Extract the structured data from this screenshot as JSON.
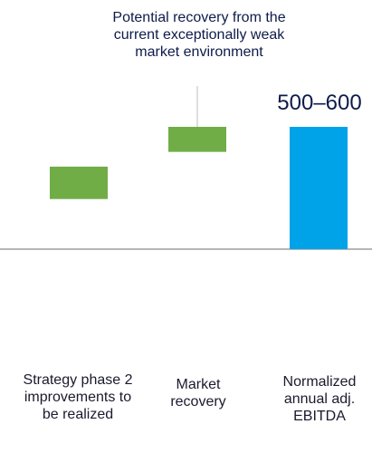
{
  "chart_data": {
    "type": "bar",
    "variant": "waterfall",
    "categories": [
      "Strategy phase 2 improvements to be realized",
      "Market recovery",
      "Normalized annual adj. EBITDA"
    ],
    "series": [
      {
        "values": [
          {
            "start": 170,
            "end": 280,
            "color": "#70ad47"
          },
          {
            "start": 330,
            "end": 415,
            "color": "#70ad47"
          },
          {
            "start": 0,
            "end": 415,
            "color": "#00a3e8"
          }
        ]
      }
    ],
    "ylim": [
      0,
      450
    ],
    "grid": false,
    "legend": "none",
    "value_label": "500–600",
    "annotation": "Potential recovery from the current exceptionally weak market environment",
    "colors": {
      "increment": "#70ad47",
      "total": "#00a3e8",
      "baseline": "#9e9e9e",
      "text": "#0d1b4a"
    }
  }
}
